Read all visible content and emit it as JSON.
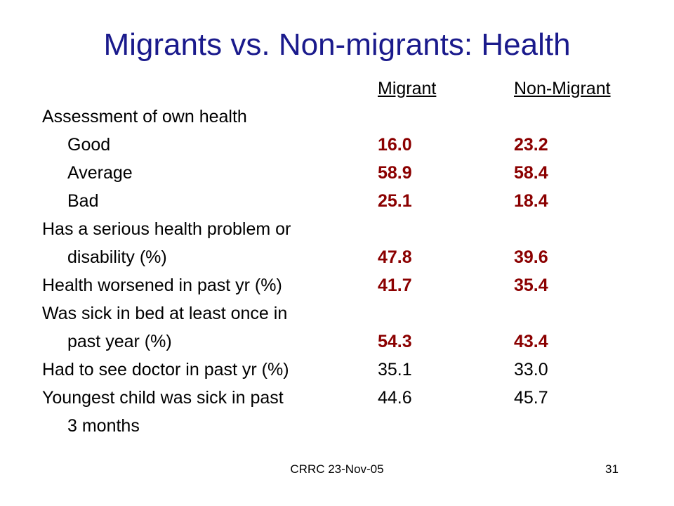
{
  "slide": {
    "title": "Migrants vs. Non-migrants: Health",
    "footer_left": "CRRC 23-Nov-05",
    "page_number": "31"
  },
  "table": {
    "headers": [
      "Migrant",
      "Non-Migrant"
    ],
    "rows": [
      {
        "label": "Assessment of own health",
        "migrant": "",
        "non_migrant": ""
      },
      {
        "label": "Good",
        "migrant": "16.0",
        "non_migrant": "23.2"
      },
      {
        "label": "Average",
        "migrant": "58.9",
        "non_migrant": "58.4"
      },
      {
        "label": "Bad",
        "migrant": "25.1",
        "non_migrant": "18.4"
      },
      {
        "label": "Has a serious health problem or",
        "migrant": "",
        "non_migrant": ""
      },
      {
        "label": "disability (%)",
        "migrant": "47.8",
        "non_migrant": "39.6"
      },
      {
        "label": "Health worsened in past yr (%)",
        "migrant": "41.7",
        "non_migrant": "35.4"
      },
      {
        "label": "Was sick in bed at least once in",
        "migrant": "",
        "non_migrant": ""
      },
      {
        "label": "past year (%)",
        "migrant": "54.3",
        "non_migrant": "43.4"
      },
      {
        "label": "Had to see doctor in past yr (%)",
        "migrant": "35.1",
        "non_migrant": "33.0"
      },
      {
        "label": "Youngest child was sick in past",
        "migrant": "44.6",
        "non_migrant": "45.7"
      },
      {
        "label": "3 months",
        "migrant": "",
        "non_migrant": ""
      }
    ]
  },
  "colors": {
    "title": "#1a1a8c",
    "highlight_values": "#8b0000",
    "text": "#000000"
  }
}
